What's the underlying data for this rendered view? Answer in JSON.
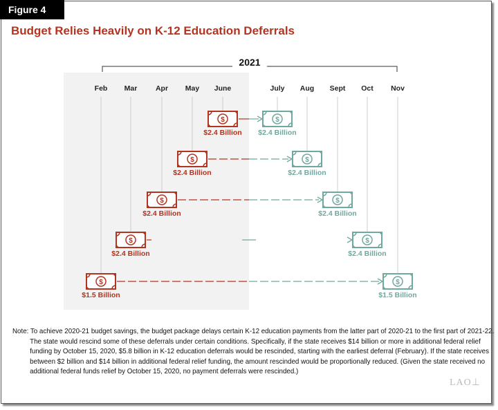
{
  "figure_label": "Figure 4",
  "title": "Budget Relies Heavily on K-12 Education Deferrals",
  "year_label": "2021",
  "months": [
    "Feb",
    "Mar",
    "Apr",
    "May",
    "June",
    "July",
    "Aug",
    "Sept",
    "Oct",
    "Nov"
  ],
  "deferrals": [
    {
      "from": "June",
      "to": "July",
      "amount": "$2.4 Billion"
    },
    {
      "from": "May",
      "to": "Aug",
      "amount": "$2.4 Billion"
    },
    {
      "from": "Apr",
      "to": "Sept",
      "amount": "$2.4 Billion"
    },
    {
      "from": "Mar",
      "to": "Oct",
      "amount": "$2.4 Billion"
    },
    {
      "from": "Feb",
      "to": "Nov",
      "amount": "$1.5 Billion"
    }
  ],
  "colors": {
    "deferred": "#b0341f",
    "repaid": "#6fa89e",
    "shaded_period": "#f2f2f2"
  },
  "icon": "dollar-bill-icon",
  "note": "Note: To achieve 2020-21 budget savings, the budget package delays certain K-12 education payments from the latter part of 2020-21 to the first part of 2021-22. The state would rescind some of these deferrals under certain conditions. Specifically, if the state receives $14 billion or more in additional federal relief funding by October 15, 2020, $5.8 billion in K-12 education deferrals would be rescinded, starting with the earliest deferral (February). If the state receives between $2 billion and $14 billion in additional federal relief funding, the amount rescinded would be proportionally reduced. (Given the state received no additional federal funds relief by October 15, 2020, no payment deferrals were rescinded.)",
  "logo": "LAO"
}
